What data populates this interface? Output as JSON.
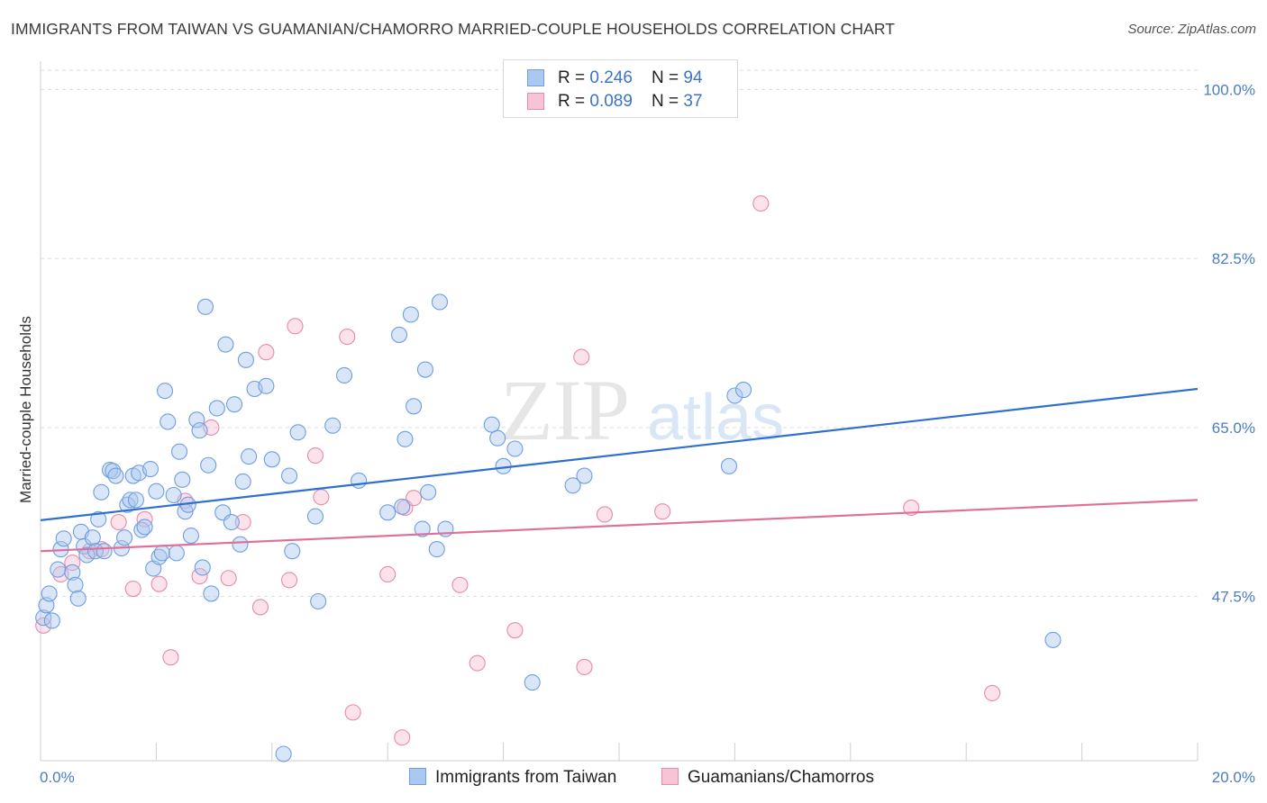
{
  "title": "IMMIGRANTS FROM TAIWAN VS GUAMANIAN/CHAMORRO MARRIED-COUPLE HOUSEHOLDS CORRELATION CHART",
  "source": "Source: ZipAtlas.com",
  "watermark": {
    "zip": "ZIP",
    "atlas": "atlas"
  },
  "legend": {
    "rows": [
      {
        "r_label": "R = ",
        "r_value": "0.246",
        "n_label": "N = ",
        "n_value": "94"
      },
      {
        "r_label": "R = ",
        "r_value": "0.089",
        "n_label": "N = ",
        "n_value": "37"
      }
    ]
  },
  "bottom_legend": [
    "Immigrants from Taiwan",
    "Guamanians/Chamorros"
  ],
  "colors": {
    "blue_fill": "#aac8f0",
    "blue_stroke": "#6e9ee0",
    "blue_line": "#2f6fcf",
    "pink_fill": "#f7bfd2",
    "pink_stroke": "#e88aaa",
    "pink_line": "#e0709a",
    "grid": "#dddddd",
    "axis_text": "#4a7cc8"
  },
  "chart_data": {
    "type": "scatter",
    "title": "IMMIGRANTS FROM TAIWAN VS GUAMANIAN/CHAMORRO MARRIED-COUPLE HOUSEHOLDS CORRELATION CHART",
    "xlabel": "",
    "ylabel": "Married-couple Households",
    "xlim": [
      0,
      20
    ],
    "ylim": [
      30.5,
      102
    ],
    "x_tick_labels": {
      "min": "0.0%",
      "max": "20.0%"
    },
    "y_ticks": [
      47.5,
      65.0,
      82.5,
      100.0
    ],
    "y_tick_labels": [
      "47.5%",
      "65.0%",
      "82.5%",
      "100.0%"
    ],
    "series": [
      {
        "name": "Immigrants from Taiwan",
        "color": "blue",
        "R": 0.246,
        "N": 94,
        "trend": {
          "x": [
            0,
            20
          ],
          "y": [
            55.4,
            69.0
          ]
        },
        "points": [
          [
            0.05,
            45.3
          ],
          [
            0.1,
            46.6
          ],
          [
            0.15,
            47.8
          ],
          [
            0.2,
            45.0
          ],
          [
            0.3,
            50.3
          ],
          [
            0.35,
            52.4
          ],
          [
            0.4,
            53.5
          ],
          [
            0.55,
            50.0
          ],
          [
            0.6,
            48.7
          ],
          [
            0.65,
            47.3
          ],
          [
            0.7,
            54.2
          ],
          [
            0.75,
            52.7
          ],
          [
            0.8,
            51.8
          ],
          [
            0.9,
            53.6
          ],
          [
            0.95,
            52.2
          ],
          [
            1.0,
            55.5
          ],
          [
            1.05,
            58.3
          ],
          [
            1.1,
            52.2
          ],
          [
            1.2,
            60.6
          ],
          [
            1.25,
            60.5
          ],
          [
            1.3,
            60.0
          ],
          [
            1.4,
            52.5
          ],
          [
            1.45,
            53.6
          ],
          [
            1.5,
            57.0
          ],
          [
            1.55,
            57.5
          ],
          [
            1.6,
            60.0
          ],
          [
            1.65,
            57.5
          ],
          [
            1.7,
            60.3
          ],
          [
            1.75,
            54.4
          ],
          [
            1.8,
            54.7
          ],
          [
            1.9,
            60.7
          ],
          [
            1.95,
            50.4
          ],
          [
            2.0,
            58.4
          ],
          [
            2.05,
            51.6
          ],
          [
            2.1,
            52.0
          ],
          [
            2.15,
            68.8
          ],
          [
            2.2,
            65.6
          ],
          [
            2.3,
            58.0
          ],
          [
            2.35,
            52.0
          ],
          [
            2.4,
            62.5
          ],
          [
            2.45,
            59.6
          ],
          [
            2.5,
            56.3
          ],
          [
            2.55,
            57.0
          ],
          [
            2.6,
            53.8
          ],
          [
            2.7,
            65.8
          ],
          [
            2.75,
            64.7
          ],
          [
            2.8,
            50.5
          ],
          [
            2.85,
            77.5
          ],
          [
            2.9,
            61.1
          ],
          [
            2.95,
            47.8
          ],
          [
            3.05,
            67.0
          ],
          [
            3.15,
            56.2
          ],
          [
            3.2,
            73.6
          ],
          [
            3.3,
            55.2
          ],
          [
            3.35,
            67.4
          ],
          [
            3.45,
            52.9
          ],
          [
            3.5,
            59.4
          ],
          [
            3.55,
            72.0
          ],
          [
            3.6,
            62.0
          ],
          [
            3.7,
            69.0
          ],
          [
            3.9,
            69.3
          ],
          [
            4.0,
            61.7
          ],
          [
            4.2,
            31.2
          ],
          [
            4.3,
            60.0
          ],
          [
            4.35,
            52.2
          ],
          [
            4.45,
            64.5
          ],
          [
            4.75,
            55.8
          ],
          [
            4.8,
            47.0
          ],
          [
            5.05,
            65.2
          ],
          [
            5.25,
            70.4
          ],
          [
            5.5,
            59.5
          ],
          [
            6.0,
            56.2
          ],
          [
            6.2,
            74.6
          ],
          [
            6.25,
            56.8
          ],
          [
            6.3,
            63.8
          ],
          [
            6.4,
            76.7
          ],
          [
            6.45,
            67.2
          ],
          [
            6.6,
            54.5
          ],
          [
            6.65,
            71.0
          ],
          [
            6.7,
            58.3
          ],
          [
            6.85,
            52.4
          ],
          [
            6.9,
            78.0
          ],
          [
            7.0,
            54.5
          ],
          [
            7.8,
            65.3
          ],
          [
            7.9,
            63.9
          ],
          [
            8.0,
            61.0
          ],
          [
            8.2,
            62.8
          ],
          [
            8.5,
            38.6
          ],
          [
            9.2,
            59.0
          ],
          [
            9.4,
            60.0
          ],
          [
            11.9,
            61.0
          ],
          [
            12.0,
            68.3
          ],
          [
            12.15,
            68.9
          ],
          [
            17.5,
            43.0
          ]
        ]
      },
      {
        "name": "Guamanians/Chamorros",
        "color": "pink",
        "R": 0.089,
        "N": 37,
        "trend": {
          "x": [
            0,
            20
          ],
          "y": [
            52.2,
            57.5
          ]
        },
        "points": [
          [
            0.05,
            44.5
          ],
          [
            0.35,
            49.8
          ],
          [
            0.55,
            51.0
          ],
          [
            0.85,
            52.2
          ],
          [
            1.05,
            52.4
          ],
          [
            1.35,
            55.2
          ],
          [
            1.6,
            48.3
          ],
          [
            1.8,
            55.5
          ],
          [
            2.05,
            48.8
          ],
          [
            2.25,
            41.2
          ],
          [
            2.5,
            57.4
          ],
          [
            2.75,
            49.6
          ],
          [
            2.95,
            65.0
          ],
          [
            3.25,
            49.4
          ],
          [
            3.5,
            55.2
          ],
          [
            3.8,
            46.4
          ],
          [
            3.9,
            72.8
          ],
          [
            4.3,
            49.2
          ],
          [
            4.4,
            75.5
          ],
          [
            4.75,
            62.1
          ],
          [
            4.85,
            57.8
          ],
          [
            5.3,
            74.4
          ],
          [
            5.4,
            35.5
          ],
          [
            6.0,
            49.8
          ],
          [
            6.25,
            32.9
          ],
          [
            6.3,
            56.7
          ],
          [
            6.45,
            57.7
          ],
          [
            7.25,
            48.7
          ],
          [
            7.55,
            40.6
          ],
          [
            8.2,
            44.0
          ],
          [
            9.35,
            72.3
          ],
          [
            9.4,
            40.2
          ],
          [
            9.75,
            56.0
          ],
          [
            10.75,
            56.3
          ],
          [
            12.45,
            88.2
          ],
          [
            15.05,
            56.7
          ],
          [
            16.45,
            37.5
          ]
        ]
      }
    ]
  }
}
